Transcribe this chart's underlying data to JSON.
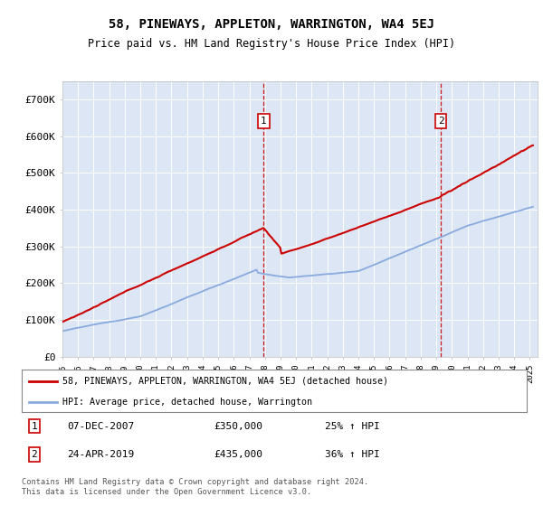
{
  "title": "58, PINEWAYS, APPLETON, WARRINGTON, WA4 5EJ",
  "subtitle": "Price paid vs. HM Land Registry's House Price Index (HPI)",
  "plot_bg_color": "#dce6f5",
  "red_line_color": "#cc0000",
  "blue_line_color": "#88aadd",
  "vline_color": "#cc0000",
  "legend_line1": "58, PINEWAYS, APPLETON, WARRINGTON, WA4 5EJ (detached house)",
  "legend_line2": "HPI: Average price, detached house, Warrington",
  "footer": "Contains HM Land Registry data © Crown copyright and database right 2024.\nThis data is licensed under the Open Government Licence v3.0.",
  "yticks": [
    0,
    100000,
    200000,
    300000,
    400000,
    500000,
    600000,
    700000
  ],
  "ylim": [
    0,
    750000
  ],
  "xlim_start": 1995,
  "xlim_end": 2025.5,
  "sale1_year": 2007.92,
  "sale1_price": 350000,
  "sale1_date": "07-DEC-2007",
  "sale1_hpi": "25% ↑ HPI",
  "sale2_year": 2019.29,
  "sale2_price": 435000,
  "sale2_date": "24-APR-2019",
  "sale2_hpi": "36% ↑ HPI"
}
